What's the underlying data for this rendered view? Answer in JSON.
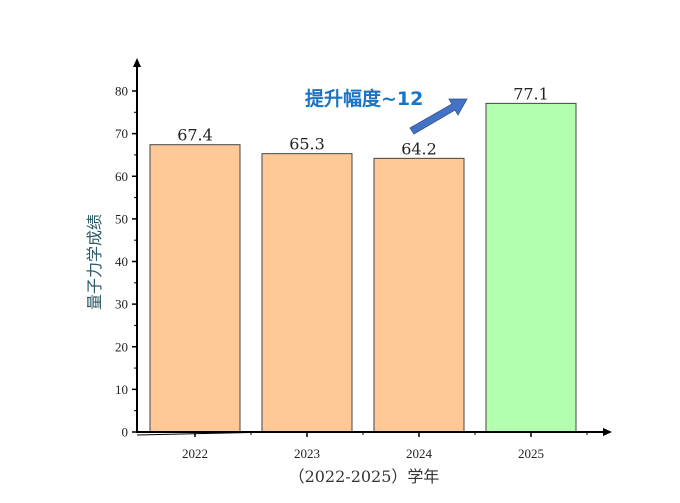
{
  "chart_data": {
    "type": "bar",
    "categories": [
      "2022",
      "2023",
      "2024",
      "2025"
    ],
    "values": [
      67.4,
      65.3,
      64.2,
      77.1
    ],
    "data_labels": [
      "67.4",
      "65.3",
      "64.2",
      "77.1"
    ],
    "bar_colors": [
      "#ffc997",
      "#ffc997",
      "#ffc997",
      "#b3ffb0"
    ],
    "xlabel": "（2022-2025）学年",
    "ylabel": "量子力学成绩",
    "ylim": [
      0,
      85
    ],
    "yticks": [
      0,
      10,
      20,
      30,
      40,
      50,
      60,
      70,
      80
    ],
    "grid": false,
    "annotation": {
      "text": "提升幅度~12",
      "color": "#1a73c4",
      "arrow_color": "#4472c4"
    }
  }
}
